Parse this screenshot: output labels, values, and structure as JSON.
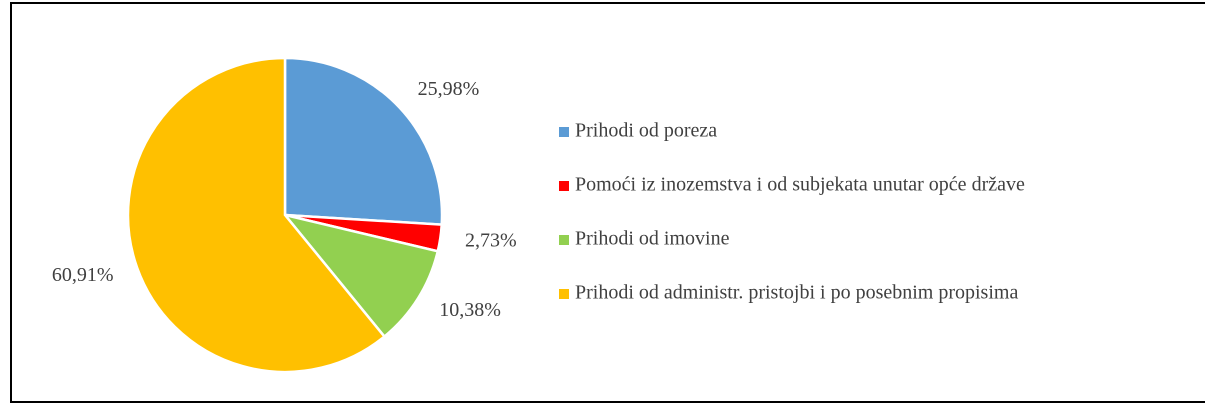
{
  "chart_data": {
    "type": "pie",
    "categories": [
      "Prihodi od poreza",
      "Pomoći iz inozemstva i od subjekata unutar opće države",
      "Prihodi od imovine",
      "Prihodi od administr. pristojbi i po posebnim propisima"
    ],
    "values": [
      25.98,
      2.73,
      10.38,
      60.91
    ],
    "value_labels": [
      "25,98%",
      "2,73%",
      "10,38%",
      "60,91%"
    ],
    "colors": [
      "#5b9bd5",
      "#ff0000",
      "#92d050",
      "#ffc000"
    ],
    "legend": "right"
  }
}
